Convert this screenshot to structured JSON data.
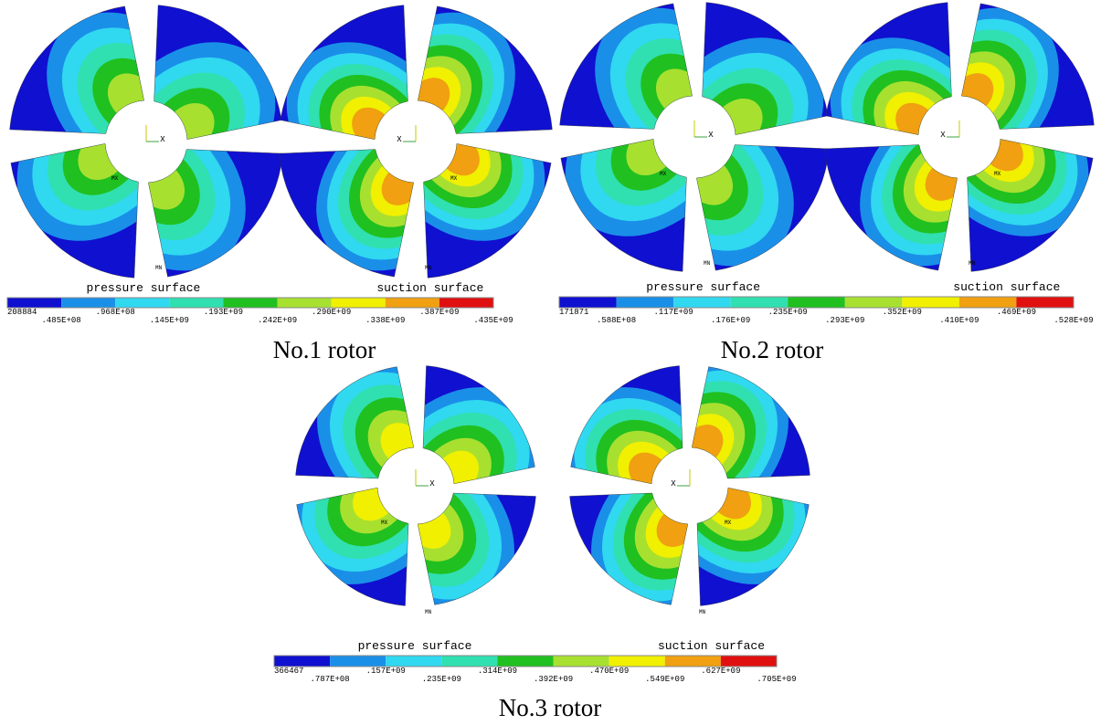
{
  "panels": [
    {
      "caption": "No.1 rotor",
      "left_label": "pressure surface",
      "right_label": "suction surface",
      "triad": "X",
      "markers": [
        "MX",
        "MN"
      ],
      "legend": {
        "colors": [
          "#1010d0",
          "#1a8fe8",
          "#30d8f0",
          "#30e0b0",
          "#20c020",
          "#a8e030",
          "#f0f000",
          "#f0a010",
          "#e01010"
        ],
        "ticks": [
          "208884",
          ".485E+08",
          ".968E+08",
          ".145E+09",
          ".193E+09",
          ".242E+09",
          ".290E+09",
          ".338E+09",
          ".387E+09",
          ".435E+09"
        ]
      }
    },
    {
      "caption": "No.2 rotor",
      "left_label": "pressure surface",
      "right_label": "suction surface",
      "triad": "X",
      "markers": [
        "MX",
        "MN"
      ],
      "legend": {
        "colors": [
          "#1010d0",
          "#1a8fe8",
          "#30d8f0",
          "#30e0b0",
          "#20c020",
          "#a8e030",
          "#f0f000",
          "#f0a010",
          "#e01010"
        ],
        "ticks": [
          "171871",
          ".588E+08",
          ".117E+09",
          ".176E+09",
          ".235E+09",
          ".293E+09",
          ".352E+09",
          ".410E+09",
          ".469E+09",
          ".528E+09"
        ]
      }
    },
    {
      "caption": "No.3 rotor",
      "left_label": "pressure surface",
      "right_label": "suction surface",
      "triad": "X",
      "markers": [
        "MX",
        "MN"
      ],
      "legend": {
        "colors": [
          "#1010d0",
          "#1a8fe8",
          "#30d8f0",
          "#30e0b0",
          "#20c020",
          "#a8e030",
          "#f0f000",
          "#f0a010",
          "#e01010"
        ],
        "ticks": [
          "366467",
          ".787E+08",
          ".157E+09",
          ".235E+09",
          ".314E+09",
          ".392E+09",
          ".470E+09",
          ".549E+09",
          ".627E+09",
          ".705E+09"
        ]
      }
    }
  ]
}
